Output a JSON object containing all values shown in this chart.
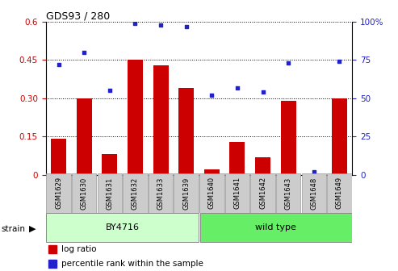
{
  "title": "GDS93 / 280",
  "categories": [
    "GSM1629",
    "GSM1630",
    "GSM1631",
    "GSM1632",
    "GSM1633",
    "GSM1639",
    "GSM1640",
    "GSM1641",
    "GSM1642",
    "GSM1643",
    "GSM1648",
    "GSM1649"
  ],
  "log_ratio": [
    0.14,
    0.3,
    0.08,
    0.45,
    0.43,
    0.34,
    0.02,
    0.13,
    0.07,
    0.29,
    0.0,
    0.3
  ],
  "percentile_rank": [
    72,
    80,
    55,
    99,
    98,
    97,
    52,
    57,
    54,
    73,
    2,
    74
  ],
  "bar_color": "#cc0000",
  "dot_color": "#2222cc",
  "ylim_left": [
    0,
    0.6
  ],
  "ylim_right": [
    0,
    100
  ],
  "yticks_left": [
    0,
    0.15,
    0.3,
    0.45,
    0.6
  ],
  "ytick_labels_left": [
    "0",
    "0.15",
    "0.30",
    "0.45",
    "0.6"
  ],
  "yticks_right": [
    0,
    25,
    50,
    75,
    100
  ],
  "ytick_labels_right": [
    "0",
    "25",
    "50",
    "75",
    "100%"
  ],
  "group1_label": "BY4716",
  "group2_label": "wild type",
  "group1_color": "#ccffcc",
  "group2_color": "#66ee66",
  "strain_label": "strain",
  "legend1": "log ratio",
  "legend2": "percentile rank within the sample",
  "tick_label_color_left": "#cc0000",
  "tick_label_color_right": "#2222cc",
  "xticklabel_bg": "#cccccc",
  "bar_width": 0.6,
  "n_group1": 6,
  "n_group2": 6
}
